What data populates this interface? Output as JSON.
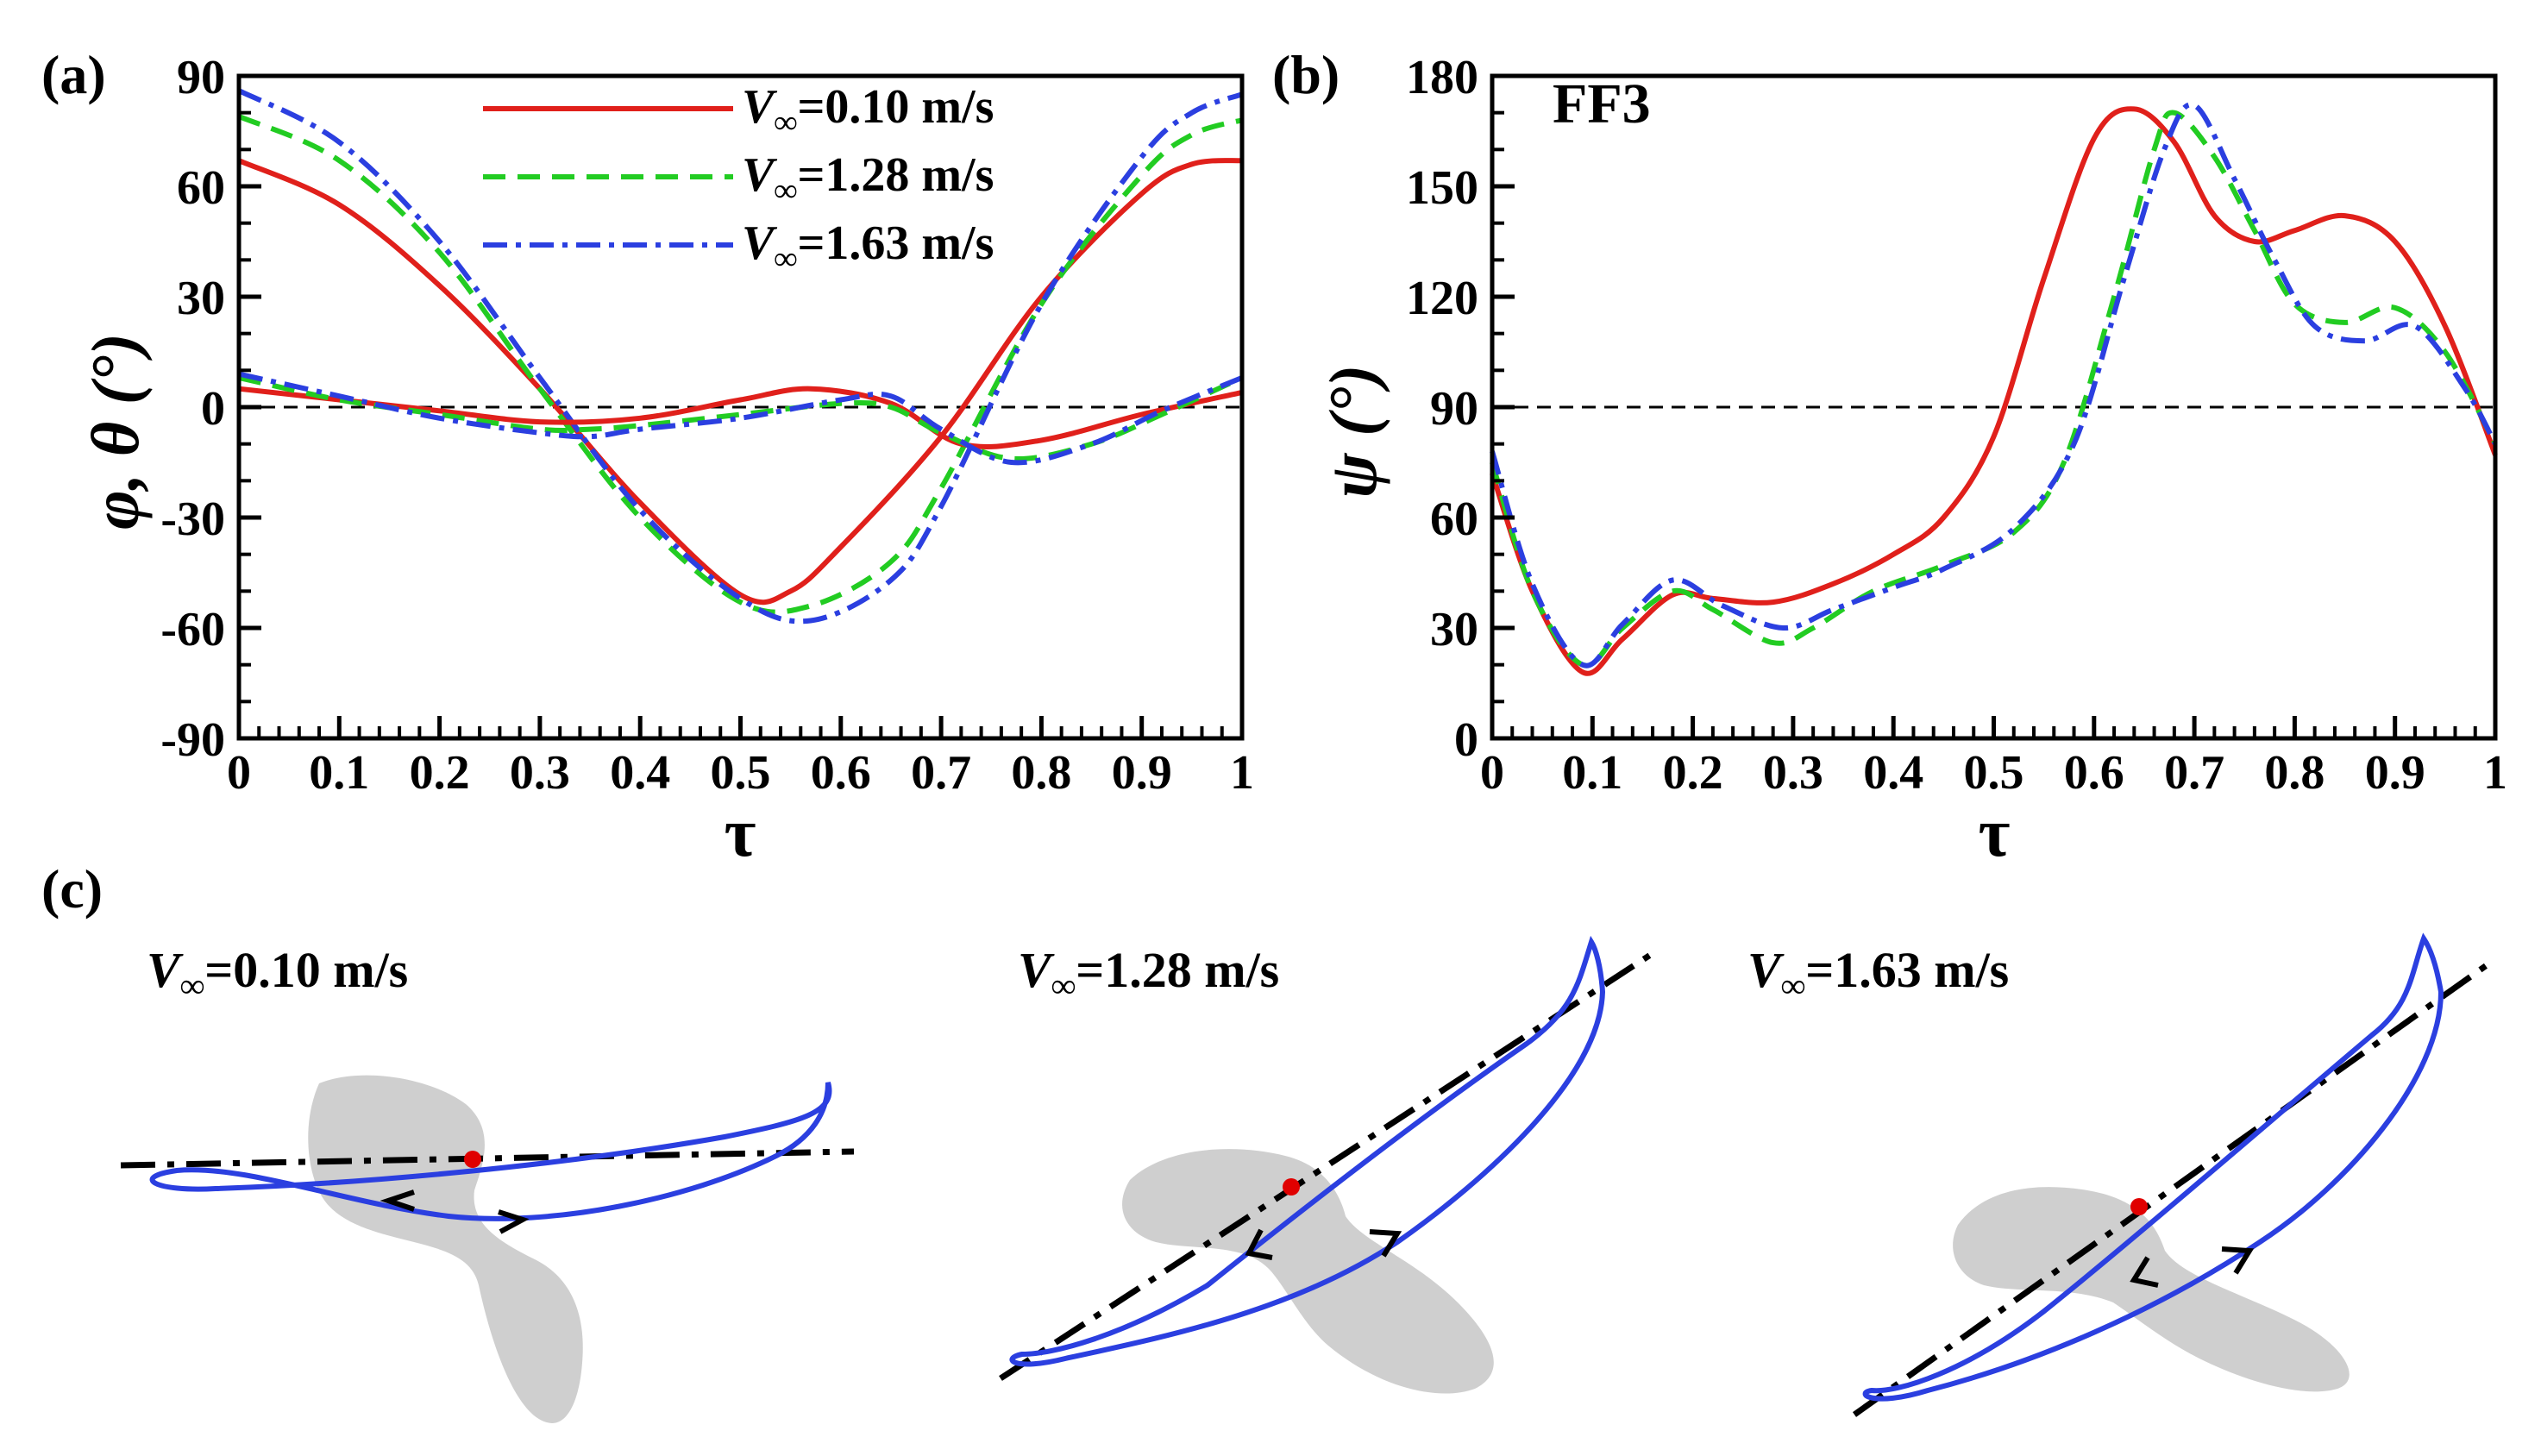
{
  "chart_data": [
    {
      "panel": "(a)",
      "type": "line",
      "title": "",
      "xlabel": "τ",
      "ylabel": "φ, θ (°)",
      "xlim": [
        0,
        1
      ],
      "ylim": [
        -90,
        90
      ],
      "xticks": [
        "0",
        "0.1",
        "0.2",
        "0.3",
        "0.4",
        "0.5",
        "0.6",
        "0.7",
        "0.8",
        "0.9",
        "1"
      ],
      "yticks": [
        "90",
        "60",
        "30",
        "0",
        "-30",
        "-60",
        "-90"
      ],
      "reference_line": 0,
      "legend": {
        "position": "top-right",
        "entries": [
          {
            "prefix": "V",
            "sub": "∞",
            "text": "=0.10 m/s",
            "color": "#e0201b",
            "dash": "solid"
          },
          {
            "prefix": "V",
            "sub": "∞",
            "text": "=1.28 m/s",
            "color": "#22cc22",
            "dash": "dashed"
          },
          {
            "prefix": "V",
            "sub": "∞",
            "text": "=1.63 m/s",
            "color": "#2b3fe0",
            "dash": "dashdot"
          }
        ]
      },
      "series": [
        {
          "name": "φ, V∞=0.10 m/s",
          "color": "#e0201b",
          "dash": "solid",
          "x": [
            0,
            0.1,
            0.2,
            0.3,
            0.4,
            0.5,
            0.55,
            0.6,
            0.7,
            0.8,
            0.9,
            0.95,
            1
          ],
          "y": [
            67,
            55,
            33,
            5,
            -26,
            -51,
            -50,
            -38,
            -8,
            30,
            58,
            66,
            67
          ]
        },
        {
          "name": "φ, V∞=1.28 m/s",
          "color": "#22cc22",
          "dash": "dashed",
          "x": [
            0,
            0.1,
            0.2,
            0.3,
            0.4,
            0.5,
            0.57,
            0.65,
            0.7,
            0.8,
            0.9,
            0.95,
            1
          ],
          "y": [
            79,
            67,
            42,
            5,
            -30,
            -53,
            -54,
            -42,
            -22,
            28,
            63,
            74,
            78
          ]
        },
        {
          "name": "φ, V∞=1.63 m/s",
          "color": "#2b3fe0",
          "dash": "dashdot",
          "x": [
            0,
            0.1,
            0.2,
            0.3,
            0.4,
            0.5,
            0.57,
            0.65,
            0.7,
            0.8,
            0.9,
            0.95,
            1
          ],
          "y": [
            86,
            72,
            45,
            8,
            -28,
            -52,
            -58,
            -47,
            -27,
            28,
            68,
            80,
            85
          ]
        },
        {
          "name": "θ, V∞=0.10 m/s",
          "color": "#e0201b",
          "dash": "solid",
          "x": [
            0,
            0.1,
            0.2,
            0.3,
            0.4,
            0.5,
            0.57,
            0.65,
            0.72,
            0.8,
            0.9,
            1
          ],
          "y": [
            5,
            2,
            -1,
            -4,
            -3,
            2,
            5,
            1,
            -10,
            -9,
            -2,
            4
          ]
        },
        {
          "name": "θ, V∞=1.28 m/s",
          "color": "#22cc22",
          "dash": "dashed",
          "x": [
            0,
            0.1,
            0.2,
            0.3,
            0.35,
            0.4,
            0.5,
            0.6,
            0.65,
            0.7,
            0.77,
            0.85,
            0.92,
            1
          ],
          "y": [
            8,
            2,
            -2,
            -6,
            -6,
            -5,
            -2,
            1,
            0,
            -7,
            -14,
            -10,
            -2,
            8
          ]
        },
        {
          "name": "θ, V∞=1.63 m/s",
          "color": "#2b3fe0",
          "dash": "dashdot",
          "x": [
            0,
            0.1,
            0.2,
            0.3,
            0.35,
            0.4,
            0.5,
            0.6,
            0.65,
            0.7,
            0.77,
            0.85,
            0.92,
            1
          ],
          "y": [
            9,
            3,
            -3,
            -7,
            -8,
            -6,
            -3,
            2,
            3,
            -6,
            -15,
            -10,
            -1,
            8
          ]
        }
      ]
    },
    {
      "panel": "(b)",
      "type": "line",
      "title": "FF3",
      "xlabel": "τ",
      "ylabel": "ψ (°)",
      "xlim": [
        0,
        1
      ],
      "ylim": [
        0,
        180
      ],
      "xticks": [
        "0",
        "0.1",
        "0.2",
        "0.3",
        "0.4",
        "0.5",
        "0.6",
        "0.7",
        "0.8",
        "0.9",
        "1"
      ],
      "yticks": [
        "180",
        "150",
        "120",
        "90",
        "60",
        "30",
        "0"
      ],
      "reference_line": 90,
      "series": [
        {
          "name": "ψ, V∞=0.10 m/s",
          "color": "#e0201b",
          "dash": "solid",
          "x": [
            0,
            0.04,
            0.09,
            0.13,
            0.18,
            0.22,
            0.28,
            0.34,
            0.4,
            0.45,
            0.5,
            0.55,
            0.6,
            0.64,
            0.68,
            0.72,
            0.76,
            0.8,
            0.85,
            0.9,
            0.95,
            1
          ],
          "y": [
            72,
            40,
            18,
            27,
            39,
            38,
            37,
            42,
            50,
            60,
            82,
            125,
            163,
            171,
            162,
            142,
            135,
            138,
            142,
            135,
            112,
            77
          ]
        },
        {
          "name": "ψ, V∞=1.28 m/s",
          "color": "#22cc22",
          "dash": "dashed",
          "x": [
            0,
            0.04,
            0.09,
            0.13,
            0.18,
            0.22,
            0.28,
            0.32,
            0.38,
            0.45,
            0.52,
            0.57,
            0.62,
            0.66,
            0.68,
            0.72,
            0.76,
            0.8,
            0.85,
            0.9,
            0.95,
            1
          ],
          "y": [
            75,
            40,
            20,
            30,
            40,
            35,
            26,
            30,
            40,
            47,
            56,
            75,
            120,
            160,
            170,
            158,
            138,
            118,
            113,
            117,
            105,
            80
          ]
        },
        {
          "name": "ψ, V∞=1.63 m/s",
          "color": "#2b3fe0",
          "dash": "dashdot",
          "x": [
            0,
            0.04,
            0.09,
            0.13,
            0.18,
            0.23,
            0.29,
            0.34,
            0.4,
            0.45,
            0.52,
            0.58,
            0.63,
            0.67,
            0.7,
            0.74,
            0.78,
            0.82,
            0.87,
            0.92,
            0.97,
            1
          ],
          "y": [
            78,
            42,
            20,
            31,
            43,
            36,
            30,
            35,
            41,
            46,
            57,
            80,
            125,
            160,
            172,
            152,
            130,
            112,
            108,
            112,
            95,
            80
          ]
        }
      ]
    }
  ],
  "panel_c": {
    "label": "(c)",
    "subpanels": [
      {
        "prefix": "V",
        "sub": "∞",
        "text": "=0.10 m/s"
      },
      {
        "prefix": "V",
        "sub": "∞",
        "text": "=1.28 m/s"
      },
      {
        "prefix": "V",
        "sub": "∞",
        "text": "=1.63 m/s"
      }
    ]
  },
  "colors": {
    "red": "#e0201b",
    "green": "#22cc22",
    "blue": "#2b3fe0",
    "body_gray": "#cfcfcf",
    "marker_red": "#e00000"
  }
}
